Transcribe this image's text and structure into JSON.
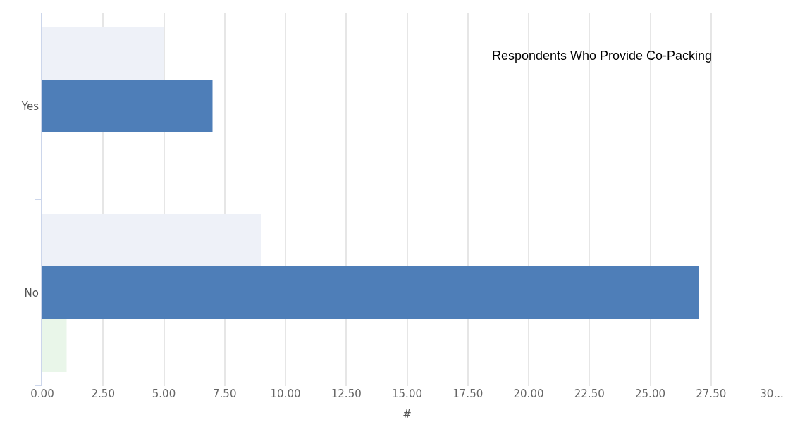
{
  "chart_data": {
    "type": "bar",
    "orientation": "horizontal",
    "title": "Respondents Who Provide Co-Packing",
    "xlabel": "#",
    "categories": [
      "Yes",
      "No"
    ],
    "series": [
      {
        "color": "#eef1f8",
        "values": [
          5,
          9
        ]
      },
      {
        "color": "#4e7eb8",
        "values": [
          7,
          27
        ]
      },
      {
        "color": "#e9f6e9",
        "values": [
          0,
          1
        ]
      }
    ],
    "xlim": [
      0,
      30
    ],
    "xticks": [
      {
        "value": 0,
        "label": "0.00"
      },
      {
        "value": 2.5,
        "label": "2.50"
      },
      {
        "value": 5,
        "label": "5.00"
      },
      {
        "value": 7.5,
        "label": "7.50"
      },
      {
        "value": 10,
        "label": "10.00"
      },
      {
        "value": 12.5,
        "label": "12.50"
      },
      {
        "value": 15,
        "label": "15.00"
      },
      {
        "value": 17.5,
        "label": "17.50"
      },
      {
        "value": 20,
        "label": "20.00"
      },
      {
        "value": 22.5,
        "label": "22.50"
      },
      {
        "value": 25,
        "label": "25.00"
      },
      {
        "value": 27.5,
        "label": "27.50"
      },
      {
        "value": 30,
        "label": "30..."
      }
    ],
    "grid": "x",
    "legend": false
  }
}
